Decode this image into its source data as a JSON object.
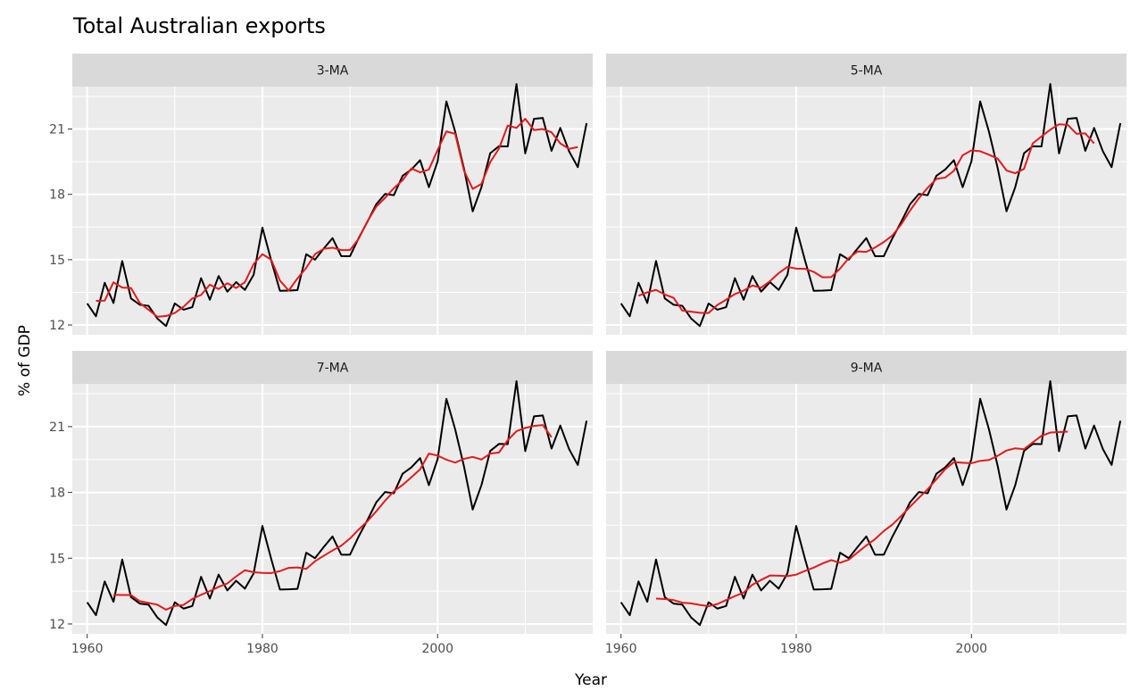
{
  "chart_data": {
    "type": "line",
    "title": "Total Australian exports",
    "xlabel": "Year",
    "ylabel": "% of GDP",
    "xlim": [
      1958.3,
      2017.7
    ],
    "ylim": [
      11.55,
      22.95
    ],
    "x_ticks": [
      1960,
      1980,
      2000
    ],
    "y_ticks": [
      12,
      15,
      18,
      21
    ],
    "grid": true,
    "legend": "none",
    "colors": {
      "data": "#000000",
      "ma": "#e31a1c",
      "panel": "#ebebeb",
      "strip": "#d9d9d9",
      "grid": "#ffffff"
    },
    "years": [
      1960,
      1961,
      1962,
      1963,
      1964,
      1965,
      1966,
      1967,
      1968,
      1969,
      1970,
      1971,
      1972,
      1973,
      1974,
      1975,
      1976,
      1977,
      1978,
      1979,
      1980,
      1981,
      1982,
      1983,
      1984,
      1985,
      1986,
      1987,
      1988,
      1989,
      1990,
      1991,
      1992,
      1993,
      1994,
      1995,
      1996,
      1997,
      1998,
      1999,
      2000,
      2001,
      2002,
      2003,
      2004,
      2005,
      2006,
      2007,
      2008,
      2009,
      2010,
      2011,
      2012,
      2013,
      2014,
      2015,
      2016,
      2017
    ],
    "exports": [
      12.99,
      12.4,
      13.94,
      13.01,
      14.94,
      13.22,
      12.93,
      12.88,
      12.3,
      11.95,
      12.99,
      12.7,
      12.82,
      14.15,
      13.16,
      14.25,
      13.53,
      13.97,
      13.61,
      14.31,
      16.47,
      14.97,
      13.57,
      13.58,
      13.6,
      15.25,
      15.0,
      15.51,
      15.99,
      15.16,
      15.16,
      16.0,
      16.75,
      17.55,
      18.02,
      17.96,
      18.85,
      19.14,
      19.57,
      18.33,
      19.52,
      22.27,
      20.88,
      19.2,
      17.22,
      18.33,
      19.89,
      20.21,
      20.2,
      23.07,
      19.88,
      21.47,
      21.51,
      20.0,
      21.05,
      19.98,
      19.25,
      21.27
    ],
    "panels": [
      {
        "label": "3-MA",
        "ma_start": 1961,
        "ma": [
          13.11,
          13.12,
          13.96,
          13.72,
          13.7,
          13.01,
          12.7,
          12.38,
          12.41,
          12.55,
          12.84,
          13.22,
          13.38,
          13.85,
          13.65,
          13.92,
          13.7,
          13.96,
          14.8,
          15.25,
          15.0,
          14.04,
          13.58,
          14.14,
          14.62,
          15.25,
          15.5,
          15.55,
          15.44,
          15.44,
          15.97,
          16.77,
          17.44,
          17.84,
          18.28,
          18.65,
          19.19,
          19.01,
          19.14,
          20.04,
          20.89,
          20.78,
          19.1,
          18.25,
          18.48,
          19.48,
          20.1,
          21.16,
          21.05,
          21.47,
          20.95,
          21.0,
          20.85,
          20.34,
          20.09,
          20.17
        ]
      },
      {
        "label": "5-MA",
        "ma_start": 1962,
        "ma": [
          13.34,
          13.5,
          13.61,
          13.4,
          13.25,
          12.66,
          12.61,
          12.56,
          12.55,
          12.92,
          13.16,
          13.42,
          13.58,
          13.81,
          13.71,
          14.01,
          14.38,
          14.67,
          14.59,
          14.58,
          14.44,
          14.19,
          14.2,
          14.59,
          15.07,
          15.38,
          15.36,
          15.56,
          15.81,
          16.12,
          16.63,
          17.26,
          17.82,
          18.3,
          18.71,
          18.77,
          19.08,
          19.8,
          20.02,
          19.98,
          19.82,
          19.64,
          19.1,
          18.97,
          19.17,
          20.34,
          20.66,
          20.97,
          21.22,
          21.19,
          20.78,
          20.8,
          20.34
        ]
      },
      {
        "label": "7-MA",
        "ma_start": 1963,
        "ma": [
          13.33,
          13.32,
          13.32,
          13.04,
          12.96,
          12.88,
          12.65,
          12.82,
          12.87,
          13.14,
          13.33,
          13.5,
          13.69,
          13.85,
          14.17,
          14.45,
          14.36,
          14.33,
          14.32,
          14.41,
          14.56,
          14.58,
          14.51,
          14.86,
          15.11,
          15.35,
          15.57,
          15.9,
          16.31,
          16.69,
          17.14,
          17.62,
          18.05,
          18.34,
          18.69,
          19.05,
          19.77,
          19.68,
          19.49,
          19.36,
          19.53,
          19.62,
          19.5,
          19.77,
          19.82,
          20.38,
          20.79,
          20.94,
          21.03,
          21.07,
          20.52
        ]
      },
      {
        "label": "9-MA",
        "ma_start": 1964,
        "ma": [
          13.16,
          13.14,
          13.09,
          12.97,
          12.94,
          12.87,
          12.81,
          12.91,
          13.09,
          13.27,
          13.43,
          13.79,
          14.01,
          14.21,
          14.2,
          14.18,
          14.25,
          14.42,
          14.57,
          14.76,
          14.91,
          14.79,
          14.93,
          15.26,
          15.58,
          15.87,
          16.24,
          16.54,
          16.93,
          17.35,
          17.75,
          18.14,
          18.6,
          19.06,
          19.38,
          19.35,
          19.33,
          19.44,
          19.48,
          19.67,
          19.91,
          20.01,
          19.97,
          20.28,
          20.58,
          20.73,
          20.75,
          20.77
        ]
      }
    ]
  }
}
